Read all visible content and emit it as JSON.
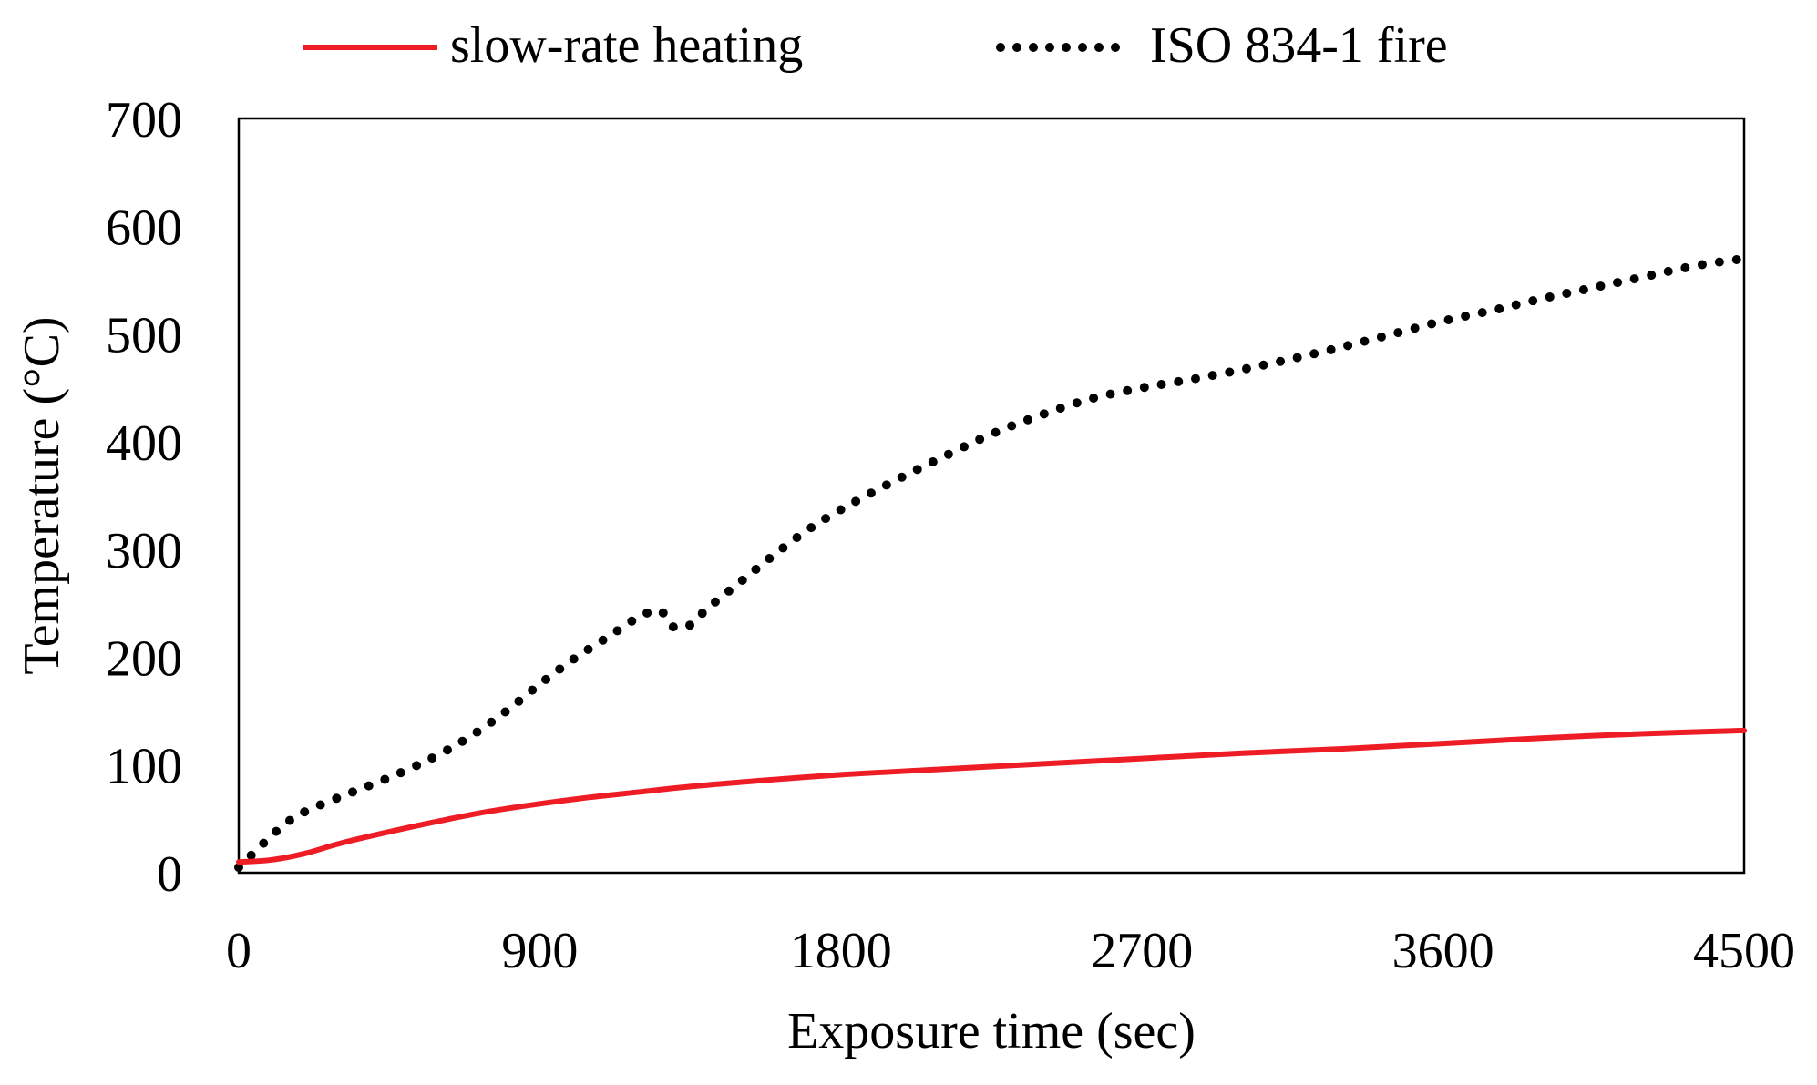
{
  "chart_data": {
    "type": "line",
    "title": "",
    "xlabel": "Exposure time (sec)",
    "ylabel": "Temperature (°C)",
    "xlim": [
      0,
      4500
    ],
    "ylim": [
      0,
      700
    ],
    "xticks": [
      0,
      900,
      1800,
      2700,
      3600,
      4500
    ],
    "yticks": [
      0,
      100,
      200,
      300,
      400,
      500,
      600,
      700
    ],
    "grid": false,
    "legend_position": "top",
    "series": [
      {
        "name": "slow-rate heating",
        "color": "#ee1c25",
        "style": "solid",
        "x": [
          0,
          100,
          200,
          300,
          450,
          600,
          750,
          900,
          1050,
          1200,
          1350,
          1500,
          1800,
          2100,
          2400,
          2700,
          3000,
          3300,
          3600,
          3900,
          4200,
          4500
        ],
        "y": [
          10,
          12,
          18,
          27,
          38,
          48,
          57,
          64,
          70,
          75,
          80,
          84,
          91,
          96,
          101,
          106,
          111,
          115,
          120,
          125,
          129,
          132
        ]
      },
      {
        "name": "ISO 834-1 fire",
        "color": "#000000",
        "style": "dotted",
        "x": [
          0,
          50,
          100,
          150,
          200,
          300,
          400,
          500,
          600,
          700,
          800,
          900,
          1000,
          1100,
          1200,
          1260,
          1300,
          1350,
          1400,
          1500,
          1600,
          1700,
          1800,
          1950,
          2100,
          2250,
          2400,
          2550,
          2700,
          2850,
          3000,
          3150,
          3300,
          3450,
          3600,
          3750,
          3900,
          4050,
          4200,
          4350,
          4500
        ],
        "y": [
          5,
          20,
          35,
          48,
          57,
          70,
          82,
          95,
          110,
          128,
          150,
          175,
          198,
          218,
          238,
          243,
          228,
          230,
          245,
          270,
          295,
          318,
          337,
          362,
          385,
          407,
          425,
          440,
          450,
          458,
          467,
          477,
          488,
          500,
          512,
          522,
          533,
          543,
          553,
          563,
          570
        ]
      }
    ]
  }
}
